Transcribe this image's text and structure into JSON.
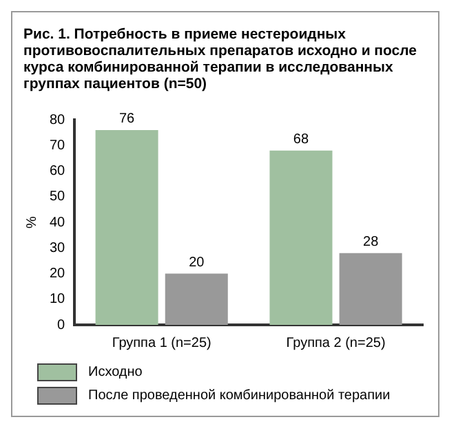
{
  "chart_data": {
    "type": "bar",
    "title": "Рис. 1. Потребность в приеме нестероидных противовоспалительных препаратов исходно и после курса комбинированной терапии в исследованных группах пациентов (n=50)",
    "categories": [
      "Группа 1 (n=25)",
      "Группа 2 (n=25)"
    ],
    "series": [
      {
        "name": "Исходно",
        "color": "#a0c0a0",
        "values": [
          76,
          68
        ]
      },
      {
        "name": "После проведенной комбинированной терапии",
        "color": "#999999",
        "values": [
          20,
          28
        ]
      }
    ],
    "ylabel": "%",
    "ylim": [
      0,
      80
    ],
    "yticks": [
      0,
      10,
      20,
      30,
      40,
      50,
      60,
      70,
      80
    ],
    "grid": false,
    "legend": "bottom",
    "data_labels": true
  }
}
